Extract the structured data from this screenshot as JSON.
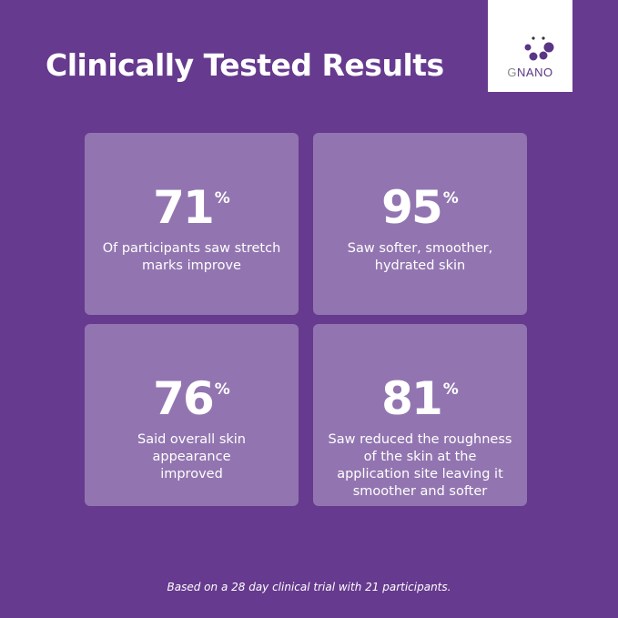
{
  "title": "Clinically Tested Results",
  "logo": {
    "prefix": "G",
    "rest": "NANO"
  },
  "colors": {
    "background": "#663a8e",
    "card": "#9275b0",
    "text": "#ffffff"
  },
  "stats": [
    {
      "value": "71",
      "unit": "%",
      "text": "Of participants saw stretch marks improve"
    },
    {
      "value": "95",
      "unit": "%",
      "text": "Saw softer, smoother, hydrated skin"
    },
    {
      "value": "76",
      "unit": "%",
      "text": "Said overall skin appearance improved"
    },
    {
      "value": "81",
      "unit": "%",
      "text": "Saw reduced the roughness of the  skin at the application site leaving it smoother and softer"
    }
  ],
  "footnote": "Based on a 28 day clinical trial with 21 participants."
}
